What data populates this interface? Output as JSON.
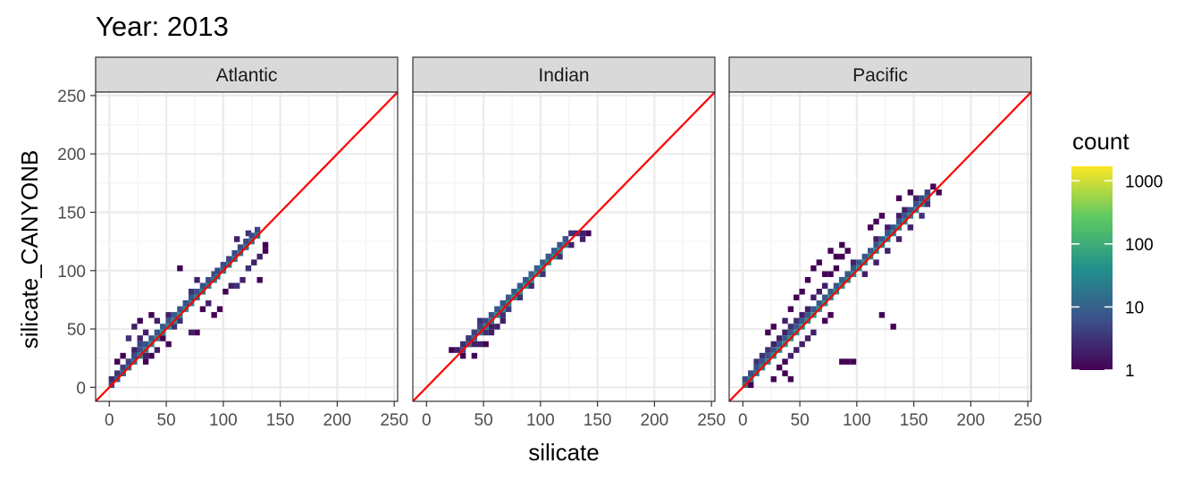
{
  "chart_data": {
    "type": "heatmap",
    "title": "Year: 2013",
    "xlabel": "silicate",
    "ylabel": "silicate_CANYONB",
    "xlim": [
      -12,
      253
    ],
    "ylim": [
      -12,
      253
    ],
    "xticks": [
      0,
      50,
      100,
      150,
      200,
      250
    ],
    "yticks": [
      0,
      50,
      100,
      150,
      200,
      250
    ],
    "grid": true,
    "bin_width": 5,
    "reference_line": {
      "slope": 1,
      "intercept": 0,
      "color": "#ff0000"
    },
    "legend": {
      "title": "count",
      "position": "right",
      "scale": "log10",
      "range": [
        1,
        1700
      ],
      "breaks": [
        1,
        10,
        100,
        1000
      ],
      "break_labels": [
        "1",
        "10",
        "100",
        "1000"
      ],
      "colors": [
        "#440154",
        "#3b528b",
        "#21918c",
        "#5ec962",
        "#fde725"
      ]
    },
    "facets": [
      {
        "label": "Atlantic",
        "diagonal_bins": [
          [
            2,
            2,
            5,
            8
          ],
          [
            47,
            47,
            40,
            60
          ],
          [
            95,
            95,
            20,
            60
          ],
          [
            132,
            132,
            20,
            12
          ]
        ],
        "bins": [
          [
            42,
            57,
            2
          ],
          [
            62,
            102,
            1
          ],
          [
            27,
            57,
            1
          ],
          [
            17,
            42,
            3
          ],
          [
            22,
            52,
            2
          ],
          [
            37,
            62,
            1
          ],
          [
            47,
            42,
            1
          ],
          [
            52,
            37,
            1
          ],
          [
            72,
            47,
            2
          ],
          [
            77,
            47,
            1
          ],
          [
            87,
            72,
            2
          ],
          [
            92,
            62,
            1
          ],
          [
            97,
            67,
            1
          ],
          [
            112,
            87,
            3
          ],
          [
            117,
            92,
            2
          ],
          [
            122,
            102,
            3
          ],
          [
            127,
            107,
            2
          ],
          [
            132,
            112,
            2
          ],
          [
            137,
            122,
            1
          ],
          [
            132,
            92,
            1
          ],
          [
            137,
            117,
            1
          ],
          [
            102,
            82,
            1
          ],
          [
            107,
            87,
            2
          ],
          [
            82,
            67,
            1
          ],
          [
            72,
            82,
            3
          ],
          [
            67,
            72,
            4
          ],
          [
            77,
            92,
            2
          ],
          [
            112,
            127,
            2
          ],
          [
            122,
            132,
            3
          ],
          [
            27,
            42,
            2
          ],
          [
            32,
            47,
            2
          ],
          [
            22,
            32,
            2
          ],
          [
            12,
            12,
            8
          ],
          [
            7,
            7,
            30
          ],
          [
            57,
            52,
            3
          ],
          [
            62,
            57,
            3
          ],
          [
            52,
            62,
            2
          ],
          [
            37,
            27,
            1
          ],
          [
            42,
            32,
            2
          ],
          [
            32,
            22,
            1
          ],
          [
            17,
            22,
            2
          ],
          [
            22,
            27,
            3
          ],
          [
            27,
            37,
            5
          ],
          [
            7,
            22,
            1
          ],
          [
            12,
            27,
            1
          ],
          [
            32,
            27,
            2
          ]
        ]
      },
      {
        "label": "Indian",
        "diagonal_bins": [
          [
            32,
            32,
            6,
            3
          ],
          [
            62,
            62,
            30,
            30
          ],
          [
            97,
            97,
            60,
            45
          ],
          [
            127,
            127,
            25,
            8
          ]
        ],
        "bins": [
          [
            22,
            32,
            1
          ],
          [
            27,
            32,
            2
          ],
          [
            32,
            27,
            1
          ],
          [
            37,
            42,
            2
          ],
          [
            42,
            47,
            3
          ],
          [
            47,
            52,
            4
          ],
          [
            47,
            57,
            3
          ],
          [
            52,
            47,
            3
          ],
          [
            57,
            52,
            2
          ],
          [
            52,
            37,
            1
          ],
          [
            47,
            37,
            2
          ],
          [
            57,
            47,
            2
          ],
          [
            42,
            37,
            2
          ],
          [
            37,
            37,
            2
          ],
          [
            42,
            27,
            1
          ],
          [
            62,
            52,
            2
          ],
          [
            67,
            62,
            3
          ],
          [
            67,
            72,
            4
          ],
          [
            77,
            82,
            3
          ],
          [
            87,
            92,
            4
          ],
          [
            97,
            102,
            3
          ],
          [
            107,
            112,
            3
          ],
          [
            112,
            117,
            3
          ],
          [
            122,
            127,
            4
          ],
          [
            127,
            132,
            3
          ],
          [
            132,
            132,
            3
          ],
          [
            137,
            132,
            2
          ],
          [
            142,
            132,
            1
          ],
          [
            137,
            127,
            2
          ],
          [
            127,
            122,
            2
          ],
          [
            117,
            112,
            3
          ],
          [
            102,
            97,
            3
          ],
          [
            92,
            87,
            3
          ],
          [
            82,
            77,
            3
          ],
          [
            72,
            67,
            4
          ],
          [
            67,
            57,
            2
          ]
        ]
      },
      {
        "label": "Pacific",
        "diagonal_bins": [
          [
            2,
            2,
            20,
            12
          ],
          [
            42,
            42,
            50,
            50
          ],
          [
            102,
            102,
            40,
            100
          ],
          [
            152,
            152,
            30,
            100
          ],
          [
            167,
            167,
            10,
            20
          ]
        ],
        "bins": [
          [
            12,
            22,
            3
          ],
          [
            17,
            27,
            3
          ],
          [
            22,
            32,
            3
          ],
          [
            27,
            37,
            2
          ],
          [
            32,
            42,
            2
          ],
          [
            37,
            47,
            2
          ],
          [
            42,
            52,
            3
          ],
          [
            47,
            57,
            3
          ],
          [
            52,
            62,
            2
          ],
          [
            57,
            67,
            2
          ],
          [
            62,
            77,
            2
          ],
          [
            67,
            82,
            2
          ],
          [
            72,
            87,
            2
          ],
          [
            77,
            97,
            1
          ],
          [
            82,
            102,
            1
          ],
          [
            87,
            112,
            1
          ],
          [
            92,
            117,
            1
          ],
          [
            87,
            122,
            1
          ],
          [
            77,
            117,
            1
          ],
          [
            82,
            112,
            1
          ],
          [
            72,
            97,
            1
          ],
          [
            67,
            107,
            1
          ],
          [
            62,
            102,
            1
          ],
          [
            57,
            92,
            1
          ],
          [
            52,
            82,
            1
          ],
          [
            47,
            77,
            1
          ],
          [
            42,
            67,
            1
          ],
          [
            37,
            57,
            2
          ],
          [
            27,
            52,
            1
          ],
          [
            22,
            47,
            1
          ],
          [
            112,
            137,
            1
          ],
          [
            117,
            142,
            1
          ],
          [
            122,
            147,
            1
          ],
          [
            137,
            162,
            1
          ],
          [
            147,
            167,
            1
          ],
          [
            122,
            62,
            1
          ],
          [
            132,
            52,
            1
          ],
          [
            87,
            22,
            1
          ],
          [
            92,
            22,
            1
          ],
          [
            97,
            22,
            1
          ],
          [
            72,
            57,
            1
          ],
          [
            77,
            62,
            1
          ],
          [
            62,
            47,
            2
          ],
          [
            57,
            42,
            2
          ],
          [
            47,
            32,
            2
          ],
          [
            52,
            37,
            2
          ],
          [
            37,
            22,
            1
          ],
          [
            32,
            17,
            1
          ],
          [
            42,
            27,
            2
          ],
          [
            27,
            7,
            1
          ],
          [
            37,
            12,
            1
          ],
          [
            42,
            7,
            1
          ],
          [
            7,
            12,
            4
          ],
          [
            12,
            17,
            5
          ],
          [
            7,
            2,
            1
          ],
          [
            107,
            97,
            2
          ],
          [
            117,
            107,
            2
          ],
          [
            127,
            117,
            2
          ],
          [
            137,
            127,
            2
          ],
          [
            147,
            137,
            2
          ],
          [
            157,
            147,
            3
          ],
          [
            162,
            157,
            3
          ],
          [
            162,
            167,
            2
          ],
          [
            152,
            162,
            2
          ],
          [
            167,
            172,
            1
          ],
          [
            172,
            167,
            1
          ],
          [
            142,
            152,
            2
          ],
          [
            137,
            147,
            2
          ],
          [
            127,
            137,
            2
          ],
          [
            117,
            127,
            2
          ],
          [
            97,
            107,
            2
          ],
          [
            87,
            92,
            2
          ],
          [
            92,
            97,
            2
          ]
        ]
      }
    ]
  }
}
